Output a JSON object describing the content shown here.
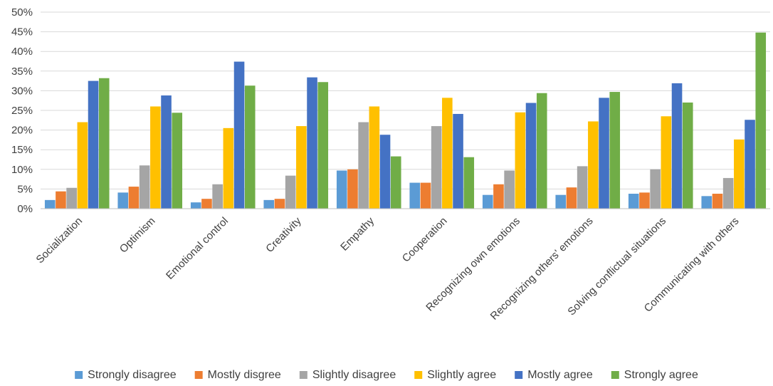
{
  "chart_data": {
    "type": "bar",
    "title": "",
    "xlabel": "",
    "ylabel": "",
    "ylim": [
      0,
      50
    ],
    "y_tick_step": 5,
    "y_tick_format": "percent",
    "grid": true,
    "legend_position": "bottom",
    "categories": [
      "Socialization",
      "Optimism",
      "Emotional control",
      "Creativity",
      "Empathy",
      "Cooperation",
      "Recognizing own emotions",
      "Recognizing others' emotions",
      "Solving conflictual situations",
      "Communicating with others"
    ],
    "series": [
      {
        "name": "Strongly disagree",
        "color": "#5B9BD5",
        "values": [
          2.2,
          4.1,
          1.6,
          2.2,
          9.7,
          6.6,
          3.5,
          3.5,
          3.8,
          3.2
        ]
      },
      {
        "name": "Mostly disgree",
        "color": "#ED7D31",
        "values": [
          4.4,
          5.6,
          2.5,
          2.5,
          10.0,
          6.6,
          6.2,
          5.4,
          4.1,
          3.8
        ]
      },
      {
        "name": "Slightly disagree",
        "color": "#A5A5A5",
        "values": [
          5.3,
          11.0,
          6.2,
          8.4,
          22.0,
          21.0,
          9.7,
          10.8,
          10.0,
          7.8
        ]
      },
      {
        "name": "Slightly agree",
        "color": "#FFC000",
        "values": [
          22.0,
          26.0,
          20.5,
          21.0,
          26.0,
          28.2,
          24.5,
          22.2,
          23.5,
          17.6
        ]
      },
      {
        "name": "Mostly agree",
        "color": "#4472C4",
        "values": [
          32.5,
          28.8,
          37.4,
          33.4,
          18.8,
          24.1,
          26.9,
          28.2,
          31.9,
          22.6
        ]
      },
      {
        "name": "Strongly agree",
        "color": "#70AD47",
        "values": [
          33.2,
          24.4,
          31.3,
          32.2,
          13.3,
          13.1,
          29.4,
          29.7,
          27.0,
          44.8
        ]
      }
    ]
  }
}
